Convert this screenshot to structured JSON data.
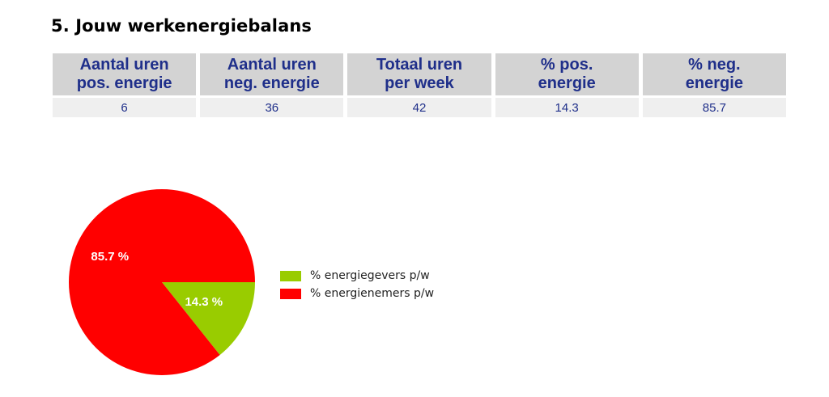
{
  "title": "5. Jouw werkenergiebalans",
  "table": {
    "headers": [
      "Aantal uren\npos. energie",
      "Aantal uren\nneg. energie",
      "Totaal uren\nper week",
      "% pos.\nenergie",
      "% neg.\nenergie"
    ],
    "values": [
      "6",
      "36",
      "42",
      "14.3",
      "85.7"
    ]
  },
  "chart_data": {
    "type": "pie",
    "slices": [
      {
        "name": "% energiegevers p/w",
        "value": 14.3,
        "label": "14.3 %",
        "color": "#99cc00"
      },
      {
        "name": "% energienemers p/w",
        "value": 85.7,
        "label": "85.7 %",
        "color": "#ff0000"
      }
    ],
    "legend": "right",
    "start": "3 o'clock",
    "direction": "clockwise"
  }
}
